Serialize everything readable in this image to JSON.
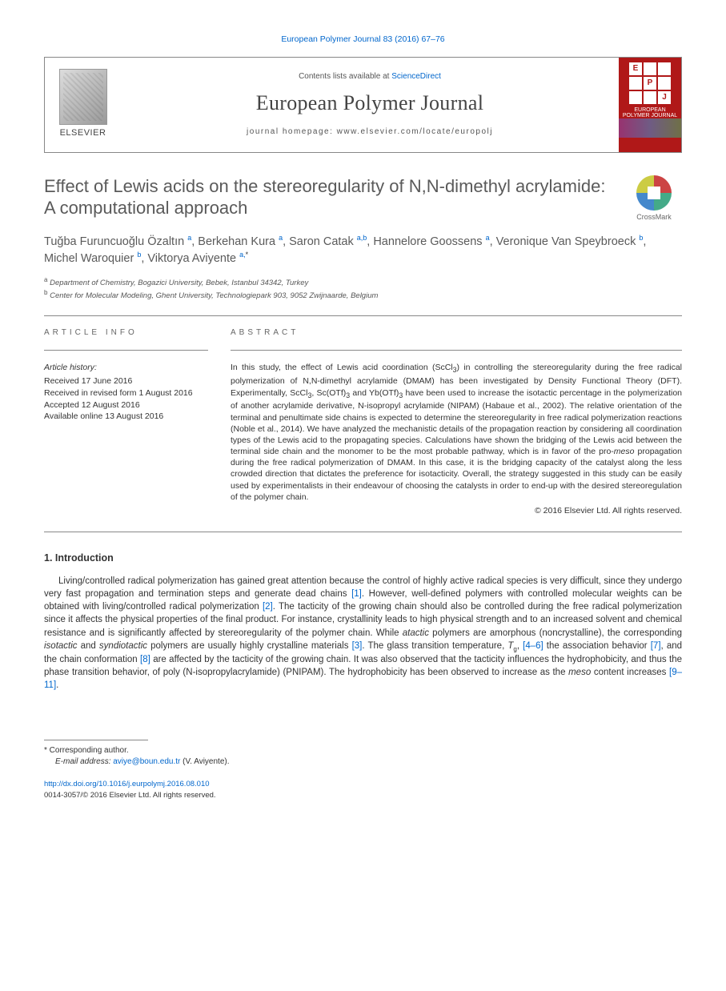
{
  "journal_ref": "European Polymer Journal 83 (2016) 67–76",
  "header": {
    "elsevier_label": "ELSEVIER",
    "contents_prefix": "Contents lists available at ",
    "contents_link": "ScienceDirect",
    "journal_name": "European Polymer Journal",
    "homepage_prefix": "journal homepage: ",
    "homepage_url": "www.elsevier.com/locate/europolj",
    "cover_letters": [
      "E",
      "P",
      "J"
    ],
    "cover_title": "EUROPEAN POLYMER JOURNAL"
  },
  "title": "Effect of Lewis acids on the stereoregularity of N,N-dimethyl acrylamide: A computational approach",
  "crossmark_label": "CrossMark",
  "authors_html": "Tuğba Furuncuoğlu Özaltın <sup>a</sup>, Berkehan Kura <sup>a</sup>, Saron Catak <sup>a,b</sup>, Hannelore Goossens <sup>a</sup>, Veronique Van Speybroeck <sup>b</sup>, Michel Waroquier <sup>b</sup>, Viktorya Aviyente <sup>a,</sup><sup class=\"ast\">*</sup>",
  "affiliations": [
    {
      "sup": "a",
      "text": "Department of Chemistry, Bogazici University, Bebek, Istanbul 34342, Turkey"
    },
    {
      "sup": "b",
      "text": "Center for Molecular Modeling, Ghent University, Technologiepark 903, 9052 Zwijnaarde, Belgium"
    }
  ],
  "article_info_label": "ARTICLE INFO",
  "abstract_label": "ABSTRACT",
  "history": {
    "label": "Article history:",
    "items": [
      "Received 17 June 2016",
      "Received in revised form 1 August 2016",
      "Accepted 12 August 2016",
      "Available online 13 August 2016"
    ]
  },
  "abstract_html": "In this study, the effect of Lewis acid coordination (ScCl<sub>3</sub>) in controlling the stereoregularity during the free radical polymerization of N,N-dimethyl acrylamide (DMAM) has been investigated by Density Functional Theory (DFT). Experimentally, ScCl<sub>3</sub>, Sc(OTf)<sub>3</sub> and Yb(OTf)<sub>3</sub> have been used to increase the isotactic percentage in the polymerization of another acrylamide derivative, N-isopropyl acrylamide (NIPAM) (Habaue et al., 2002). The relative orientation of the terminal and penultimate side chains is expected to determine the stereoregularity in free radical polymerization reactions (Noble et al., 2014). We have analyzed the mechanistic details of the propagation reaction by considering all coordination types of the Lewis acid to the propagating species. Calculations have shown the bridging of the Lewis acid between the terminal side chain and the monomer to be the most probable pathway, which is in favor of the pro-<em>meso</em> propagation during the free radical polymerization of DMAM. In this case, it is the bridging capacity of the catalyst along the less crowded direction that dictates the preference for isotacticity. Overall, the strategy suggested in this study can be easily used by experimentalists in their endeavour of choosing the catalysts in order to end-up with the desired stereoregulation of the polymer chain.",
  "copyright": "© 2016 Elsevier Ltd. All rights reserved.",
  "intro_heading": "1. Introduction",
  "intro_html": "Living/controlled radical polymerization has gained great attention because the control of highly active radical species is very difficult, since they undergo very fast propagation and termination steps and generate dead chains <a href=\"#\">[1]</a>. However, well-defined polymers with controlled molecular weights can be obtained with living/controlled radical polymerization <a href=\"#\">[2]</a>. The tacticity of the growing chain should also be controlled during the free radical polymerization since it affects the physical properties of the final product. For instance, crystallinity leads to high physical strength and to an increased solvent and chemical resistance and is significantly affected by stereoregularity of the polymer chain. While <em>atactic</em> polymers are amorphous (noncrystalline), the corresponding <em>isotactic</em> and <em>syndiotactic</em> polymers are usually highly crystalline materials <a href=\"#\">[3]</a>. The glass transition temperature, <em>T</em><sub>g</sub>, <a href=\"#\">[4–6]</a> the association behavior <a href=\"#\">[7]</a>, and the chain conformation <a href=\"#\">[8]</a> are affected by the tacticity of the growing chain. It was also observed that the tacticity influences the hydrophobicity, and thus the phase transition behavior, of poly (N-isopropylacrylamide) (PNIPAM). The hydrophobicity has been observed to increase as the <em>meso</em> content increases <a href=\"#\">[9–11]</a>.",
  "corresponding_label": "* Corresponding author.",
  "email_label": "E-mail address:",
  "email": "aviye@boun.edu.tr",
  "email_author": "(V. Aviyente).",
  "doi": "http://dx.doi.org/10.1016/j.eurpolymj.2016.08.010",
  "issn_line": "0014-3057/© 2016 Elsevier Ltd. All rights reserved.",
  "colors": {
    "link": "#0066cc",
    "journal_cover": "#b01818",
    "text_gray": "#5a5a5a",
    "rule": "#888888"
  }
}
